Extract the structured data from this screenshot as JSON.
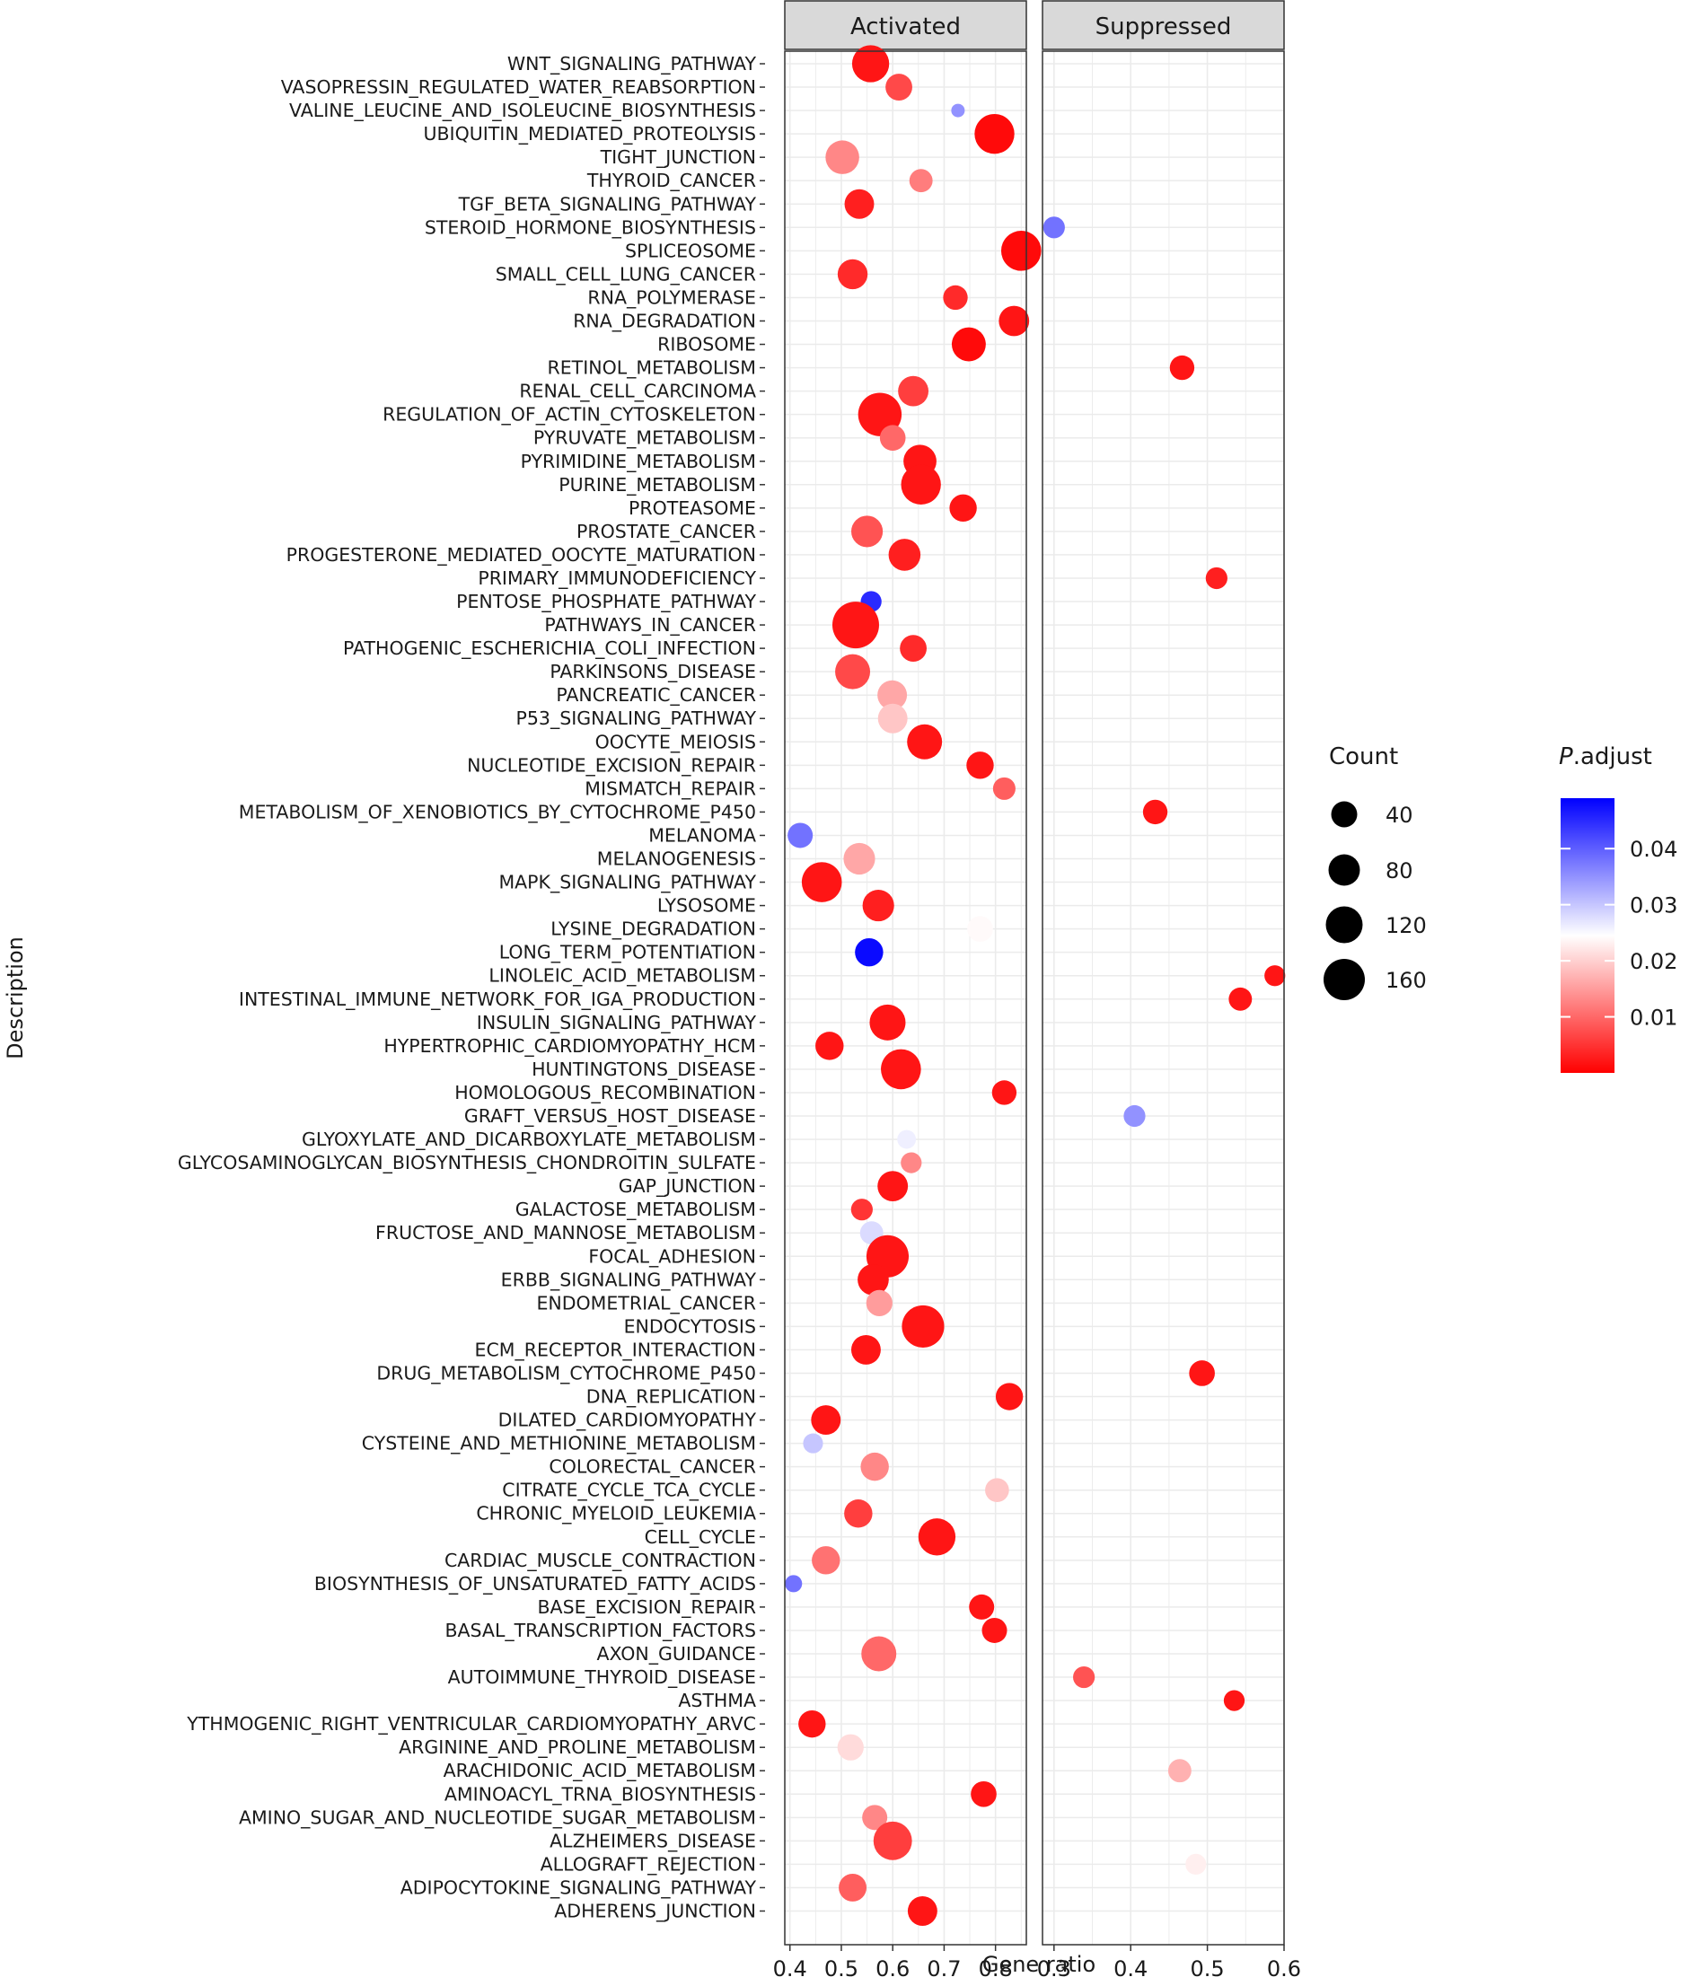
{
  "chart_data": {
    "type": "scatter",
    "xlabel": "Gene ratio",
    "ylabel": "Description",
    "grid": true,
    "legend_placement": "right",
    "categories": [
      "WNT_SIGNALING_PATHWAY",
      "VASOPRESSIN_REGULATED_WATER_REABSORPTION",
      "VALINE_LEUCINE_AND_ISOLEUCINE_BIOSYNTHESIS",
      "UBIQUITIN_MEDIATED_PROTEOLYSIS",
      "TIGHT_JUNCTION",
      "THYROID_CANCER",
      "TGF_BETA_SIGNALING_PATHWAY",
      "STEROID_HORMONE_BIOSYNTHESIS",
      "SPLICEOSOME",
      "SMALL_CELL_LUNG_CANCER",
      "RNA_POLYMERASE",
      "RNA_DEGRADATION",
      "RIBOSOME",
      "RETINOL_METABOLISM",
      "RENAL_CELL_CARCINOMA",
      "REGULATION_OF_ACTIN_CYTOSKELETON",
      "PYRUVATE_METABOLISM",
      "PYRIMIDINE_METABOLISM",
      "PURINE_METABOLISM",
      "PROTEASOME",
      "PROSTATE_CANCER",
      "PROGESTERONE_MEDIATED_OOCYTE_MATURATION",
      "PRIMARY_IMMUNODEFICIENCY",
      "PENTOSE_PHOSPHATE_PATHWAY",
      "PATHWAYS_IN_CANCER",
      "PATHOGENIC_ESCHERICHIA_COLI_INFECTION",
      "PARKINSONS_DISEASE",
      "PANCREATIC_CANCER",
      "P53_SIGNALING_PATHWAY",
      "OOCYTE_MEIOSIS",
      "NUCLEOTIDE_EXCISION_REPAIR",
      "MISMATCH_REPAIR",
      "METABOLISM_OF_XENOBIOTICS_BY_CYTOCHROME_P450",
      "MELANOMA",
      "MELANOGENESIS",
      "MAPK_SIGNALING_PATHWAY",
      "LYSOSOME",
      "LYSINE_DEGRADATION",
      "LONG_TERM_POTENTIATION",
      "LINOLEIC_ACID_METABOLISM",
      "INTESTINAL_IMMUNE_NETWORK_FOR_IGA_PRODUCTION",
      "INSULIN_SIGNALING_PATHWAY",
      "HYPERTROPHIC_CARDIOMYOPATHY_HCM",
      "HUNTINGTONS_DISEASE",
      "HOMOLOGOUS_RECOMBINATION",
      "GRAFT_VERSUS_HOST_DISEASE",
      "GLYOXYLATE_AND_DICARBOXYLATE_METABOLISM",
      "GLYCOSAMINOGLYCAN_BIOSYNTHESIS_CHONDROITIN_SULFATE",
      "GAP_JUNCTION",
      "GALACTOSE_METABOLISM",
      "FRUCTOSE_AND_MANNOSE_METABOLISM",
      "FOCAL_ADHESION",
      "ERBB_SIGNALING_PATHWAY",
      "ENDOMETRIAL_CANCER",
      "ENDOCYTOSIS",
      "ECM_RECEPTOR_INTERACTION",
      "DRUG_METABOLISM_CYTOCHROME_P450",
      "DNA_REPLICATION",
      "DILATED_CARDIOMYOPATHY",
      "CYSTEINE_AND_METHIONINE_METABOLISM",
      "COLORECTAL_CANCER",
      "CITRATE_CYCLE_TCA_CYCLE",
      "CHRONIC_MYELOID_LEUKEMIA",
      "CELL_CYCLE",
      "CARDIAC_MUSCLE_CONTRACTION",
      "BIOSYNTHESIS_OF_UNSATURATED_FATTY_ACIDS",
      "BASE_EXCISION_REPAIR",
      "BASAL_TRANSCRIPTION_FACTORS",
      "AXON_GUIDANCE",
      "AUTOIMMUNE_THYROID_DISEASE",
      "ASTHMA",
      "YTHMOGENIC_RIGHT_VENTRICULAR_CARDIOMYOPATHY_ARVC",
      "ARGININE_AND_PROLINE_METABOLISM",
      "ARACHIDONIC_ACID_METABOLISM",
      "AMINOACYL_TRNA_BIOSYNTHESIS",
      "AMINO_SUGAR_AND_NUCLEOTIDE_SUGAR_METABOLISM",
      "ALZHEIMERS_DISEASE",
      "ALLOGRAFT_REJECTION",
      "ADIPOCYTOKINE_SIGNALING_PATHWAY",
      "ADHERENS_JUNCTION"
    ],
    "panels": [
      {
        "name": "Activated",
        "xlim": [
          0.39,
          0.86
        ],
        "xticks": [
          {
            "value": 0.4,
            "label": "0.4"
          },
          {
            "value": 0.5,
            "label": "0.5"
          },
          {
            "value": 0.6,
            "label": "0.6"
          },
          {
            "value": 0.7,
            "label": "0.7"
          },
          {
            "value": 0.8,
            "label": "0.8"
          }
        ],
        "points": [
          {
            "category": "WNT_SIGNALING_PATHWAY",
            "x": 0.557,
            "count": 90,
            "p_adjust": 0.002
          },
          {
            "category": "VASOPRESSIN_REGULATED_WATER_REABSORPTION",
            "x": 0.612,
            "count": 34,
            "p_adjust": 0.007
          },
          {
            "category": "VALINE_LEUCINE_AND_ISOLEUCINE_BIOSYNTHESIS",
            "x": 0.727,
            "count": 8,
            "p_adjust": 0.035
          },
          {
            "category": "UBIQUITIN_MEDIATED_PROTEOLYSIS",
            "x": 0.798,
            "count": 110,
            "p_adjust": 0.001
          },
          {
            "category": "TIGHT_JUNCTION",
            "x": 0.502,
            "count": 68,
            "p_adjust": 0.013
          },
          {
            "category": "THYROID_CANCER",
            "x": 0.655,
            "count": 22,
            "p_adjust": 0.012
          },
          {
            "category": "TGF_BETA_SIGNALING_PATHWAY",
            "x": 0.535,
            "count": 46,
            "p_adjust": 0.003
          },
          {
            "category": "SPLICEOSOME",
            "x": 0.85,
            "count": 112,
            "p_adjust": 0.001
          },
          {
            "category": "SMALL_CELL_LUNG_CANCER",
            "x": 0.522,
            "count": 48,
            "p_adjust": 0.004
          },
          {
            "category": "RNA_POLYMERASE",
            "x": 0.722,
            "count": 26,
            "p_adjust": 0.004
          },
          {
            "category": "RNA_DEGRADATION",
            "x": 0.836,
            "count": 50,
            "p_adjust": 0.002
          },
          {
            "category": "RIBOSOME",
            "x": 0.748,
            "count": 70,
            "p_adjust": 0.001
          },
          {
            "category": "RENAL_CELL_CARCINOMA",
            "x": 0.64,
            "count": 50,
            "p_adjust": 0.006
          },
          {
            "category": "REGULATION_OF_ACTIN_CYTOSKELETON",
            "x": 0.575,
            "count": 140,
            "p_adjust": 0.002
          },
          {
            "category": "PYRUVATE_METABOLISM",
            "x": 0.6,
            "count": 30,
            "p_adjust": 0.01
          },
          {
            "category": "PYRIMIDINE_METABOLISM",
            "x": 0.653,
            "count": 64,
            "p_adjust": 0.002
          },
          {
            "category": "PURINE_METABOLISM",
            "x": 0.655,
            "count": 110,
            "p_adjust": 0.002
          },
          {
            "category": "PROTEASOME",
            "x": 0.737,
            "count": 36,
            "p_adjust": 0.002
          },
          {
            "category": "PROSTATE_CANCER",
            "x": 0.55,
            "count": 56,
            "p_adjust": 0.008
          },
          {
            "category": "PROGESTERONE_MEDIATED_OOCYTE_MATURATION",
            "x": 0.623,
            "count": 58,
            "p_adjust": 0.003
          },
          {
            "category": "PENTOSE_PHOSPHATE_PATHWAY",
            "x": 0.558,
            "count": 16,
            "p_adjust": 0.045
          },
          {
            "category": "PATHWAYS_IN_CANCER",
            "x": 0.528,
            "count": 170,
            "p_adjust": 0.002
          },
          {
            "category": "PATHOGENIC_ESCHERICHIA_COLI_INFECTION",
            "x": 0.64,
            "count": 34,
            "p_adjust": 0.004
          },
          {
            "category": "PARKINSONS_DISEASE",
            "x": 0.522,
            "count": 76,
            "p_adjust": 0.007
          },
          {
            "category": "PANCREATIC_CANCER",
            "x": 0.599,
            "count": 46,
            "p_adjust": 0.016
          },
          {
            "category": "P53_SIGNALING_PATHWAY",
            "x": 0.6,
            "count": 46,
            "p_adjust": 0.019
          },
          {
            "category": "OOCYTE_MEIOSIS",
            "x": 0.662,
            "count": 76,
            "p_adjust": 0.002
          },
          {
            "category": "NUCLEOTIDE_EXCISION_REPAIR",
            "x": 0.77,
            "count": 36,
            "p_adjust": 0.002
          },
          {
            "category": "MISMATCH_REPAIR",
            "x": 0.817,
            "count": 20,
            "p_adjust": 0.009
          },
          {
            "category": "MELANOMA",
            "x": 0.42,
            "count": 28,
            "p_adjust": 0.038
          },
          {
            "category": "MELANOGENESIS",
            "x": 0.535,
            "count": 56,
            "p_adjust": 0.016
          },
          {
            "category": "MAPK_SIGNALING_PATHWAY",
            "x": 0.462,
            "count": 112,
            "p_adjust": 0.002
          },
          {
            "category": "LYSOSOME",
            "x": 0.572,
            "count": 56,
            "p_adjust": 0.003
          },
          {
            "category": "LYSINE_DEGRADATION",
            "x": 0.77,
            "count": 30,
            "p_adjust": 0.024
          },
          {
            "category": "LONG_TERM_POTENTIATION",
            "x": 0.554,
            "count": 40,
            "p_adjust": 0.048
          },
          {
            "category": "INSULIN_SIGNALING_PATHWAY",
            "x": 0.59,
            "count": 82,
            "p_adjust": 0.002
          },
          {
            "category": "HYPERTROPHIC_CARDIOMYOPATHY_HCM",
            "x": 0.477,
            "count": 40,
            "p_adjust": 0.002
          },
          {
            "category": "HUNTINGTONS_DISEASE",
            "x": 0.616,
            "count": 112,
            "p_adjust": 0.002
          },
          {
            "category": "HOMOLOGOUS_RECOMBINATION",
            "x": 0.817,
            "count": 26,
            "p_adjust": 0.002
          },
          {
            "category": "GLYOXYLATE_AND_DICARBOXYLATE_METABOLISM",
            "x": 0.627,
            "count": 12,
            "p_adjust": 0.026
          },
          {
            "category": "GLYCOSAMINOGLYCAN_BIOSYNTHESIS_CHONDROITIN_SULFATE",
            "x": 0.636,
            "count": 16,
            "p_adjust": 0.013
          },
          {
            "category": "GAP_JUNCTION",
            "x": 0.6,
            "count": 50,
            "p_adjust": 0.002
          },
          {
            "category": "GALACTOSE_METABOLISM",
            "x": 0.54,
            "count": 18,
            "p_adjust": 0.005
          },
          {
            "category": "FRUCTOSE_AND_MANNOSE_METABOLISM",
            "x": 0.559,
            "count": 22,
            "p_adjust": 0.028
          },
          {
            "category": "FOCAL_ADHESION",
            "x": 0.59,
            "count": 130,
            "p_adjust": 0.002
          },
          {
            "category": "ERBB_SIGNALING_PATHWAY",
            "x": 0.562,
            "count": 54,
            "p_adjust": 0.002
          },
          {
            "category": "ENDOMETRIAL_CANCER",
            "x": 0.574,
            "count": 32,
            "p_adjust": 0.015
          },
          {
            "category": "ENDOCYTOSIS",
            "x": 0.659,
            "count": 130,
            "p_adjust": 0.002
          },
          {
            "category": "ECM_RECEPTOR_INTERACTION",
            "x": 0.548,
            "count": 46,
            "p_adjust": 0.002
          },
          {
            "category": "DNA_REPLICATION",
            "x": 0.827,
            "count": 36,
            "p_adjust": 0.002
          },
          {
            "category": "DILATED_CARDIOMYOPATHY",
            "x": 0.47,
            "count": 46,
            "p_adjust": 0.002
          },
          {
            "category": "CYSTEINE_AND_METHIONINE_METABOLISM",
            "x": 0.445,
            "count": 14,
            "p_adjust": 0.03
          },
          {
            "category": "COLORECTAL_CANCER",
            "x": 0.565,
            "count": 40,
            "p_adjust": 0.013
          },
          {
            "category": "CITRATE_CYCLE_TCA_CYCLE",
            "x": 0.803,
            "count": 24,
            "p_adjust": 0.019
          },
          {
            "category": "CHRONIC_MYELOID_LEUKEMIA",
            "x": 0.533,
            "count": 40,
            "p_adjust": 0.006
          },
          {
            "category": "CELL_CYCLE",
            "x": 0.686,
            "count": 90,
            "p_adjust": 0.002
          },
          {
            "category": "CARDIAC_MUSCLE_CONTRACTION",
            "x": 0.47,
            "count": 40,
            "p_adjust": 0.011
          },
          {
            "category": "BIOSYNTHESIS_OF_UNSATURATED_FATTY_ACIDS",
            "x": 0.407,
            "count": 10,
            "p_adjust": 0.038
          },
          {
            "category": "BASE_EXCISION_REPAIR",
            "x": 0.773,
            "count": 28,
            "p_adjust": 0.002
          },
          {
            "category": "BASAL_TRANSCRIPTION_FACTORS",
            "x": 0.798,
            "count": 28,
            "p_adjust": 0.002
          },
          {
            "category": "AXON_GUIDANCE",
            "x": 0.573,
            "count": 76,
            "p_adjust": 0.01
          },
          {
            "category": "YTHMOGENIC_RIGHT_VENTRICULAR_CARDIOMYOPATHY_ARVC",
            "x": 0.443,
            "count": 36,
            "p_adjust": 0.002
          },
          {
            "category": "ARGININE_AND_PROLINE_METABOLISM",
            "x": 0.518,
            "count": 32,
            "p_adjust": 0.021
          },
          {
            "category": "AMINOACYL_TRNA_BIOSYNTHESIS",
            "x": 0.777,
            "count": 30,
            "p_adjust": 0.002
          },
          {
            "category": "AMINO_SUGAR_AND_NUCLEOTIDE_SUGAR_METABOLISM",
            "x": 0.565,
            "count": 28,
            "p_adjust": 0.013
          },
          {
            "category": "ALZHEIMERS_DISEASE",
            "x": 0.6,
            "count": 100,
            "p_adjust": 0.006
          },
          {
            "category": "ADIPOCYTOKINE_SIGNALING_PATHWAY",
            "x": 0.522,
            "count": 38,
            "p_adjust": 0.009
          },
          {
            "category": "ADHERENS_JUNCTION",
            "x": 0.658,
            "count": 46,
            "p_adjust": 0.002
          }
        ]
      },
      {
        "name": "Suppressed",
        "xlim": [
          0.285,
          0.6
        ],
        "xticks": [
          {
            "value": 0.3,
            "label": "0.3"
          },
          {
            "value": 0.4,
            "label": "0.4"
          },
          {
            "value": 0.5,
            "label": "0.5"
          },
          {
            "value": 0.6,
            "label": "0.6"
          }
        ],
        "points": [
          {
            "category": "STEROID_HORMONE_BIOSYNTHESIS",
            "x": 0.3,
            "count": 18,
            "p_adjust": 0.038
          },
          {
            "category": "RETINOL_METABOLISM",
            "x": 0.467,
            "count": 26,
            "p_adjust": 0.002
          },
          {
            "category": "PRIMARY_IMMUNODEFICIENCY",
            "x": 0.512,
            "count": 18,
            "p_adjust": 0.003
          },
          {
            "category": "METABOLISM_OF_XENOBIOTICS_BY_CYTOCHROME_P450",
            "x": 0.432,
            "count": 26,
            "p_adjust": 0.002
          },
          {
            "category": "LINOLEIC_ACID_METABOLISM",
            "x": 0.588,
            "count": 16,
            "p_adjust": 0.002
          },
          {
            "category": "INTESTINAL_IMMUNE_NETWORK_FOR_IGA_PRODUCTION",
            "x": 0.543,
            "count": 22,
            "p_adjust": 0.002
          },
          {
            "category": "GRAFT_VERSUS_HOST_DISEASE",
            "x": 0.405,
            "count": 18,
            "p_adjust": 0.035
          },
          {
            "category": "DRUG_METABOLISM_CYTOCHROME_P450",
            "x": 0.493,
            "count": 30,
            "p_adjust": 0.002
          },
          {
            "category": "AUTOIMMUNE_THYROID_DISEASE",
            "x": 0.339,
            "count": 18,
            "p_adjust": 0.008
          },
          {
            "category": "ASTHMA",
            "x": 0.535,
            "count": 16,
            "p_adjust": 0.002
          },
          {
            "category": "ARACHIDONIC_ACID_METABOLISM",
            "x": 0.464,
            "count": 22,
            "p_adjust": 0.017
          },
          {
            "category": "ALLOGRAFT_REJECTION",
            "x": 0.485,
            "count": 16,
            "p_adjust": 0.023
          }
        ]
      }
    ],
    "size_legend": {
      "title": "Count",
      "breaks": [
        {
          "value": 40,
          "label": "40"
        },
        {
          "value": 80,
          "label": "80"
        },
        {
          "value": 120,
          "label": "120"
        },
        {
          "value": 160,
          "label": "160"
        }
      ]
    },
    "color_legend": {
      "title_italic": "P",
      "title_rest": ".adjust",
      "range": [
        0.0,
        0.049
      ],
      "low_color": "#ff0000",
      "mid_color": "#ffffff",
      "high_color": "#0000ff",
      "mid_value": 0.0245,
      "breaks": [
        {
          "value": 0.01,
          "label": "0.01"
        },
        {
          "value": 0.02,
          "label": "0.02"
        },
        {
          "value": 0.03,
          "label": "0.03"
        },
        {
          "value": 0.04,
          "label": "0.04"
        }
      ]
    },
    "colors": {
      "strip_fill": "#d9d9d9",
      "panel_background": "#ffffff",
      "grid": "#ebebeb",
      "border": "#333333"
    }
  }
}
